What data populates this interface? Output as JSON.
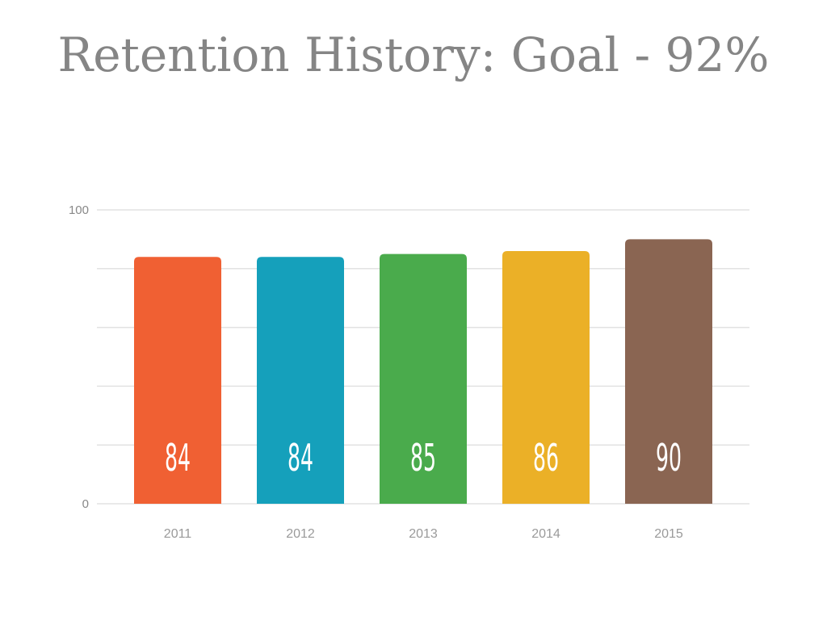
{
  "chart_data": {
    "type": "bar",
    "title": "Retention History: Goal - 92%",
    "categories": [
      "2011",
      "2012",
      "2013",
      "2014",
      "2015"
    ],
    "values": [
      84,
      84,
      85,
      86,
      90
    ],
    "colors": [
      "#f06033",
      "#15a0bb",
      "#4aab4c",
      "#ebb027",
      "#8a6552"
    ],
    "ylim": [
      0,
      100
    ],
    "yticks": [
      0,
      100
    ],
    "grid": true,
    "xlabel": "",
    "ylabel": ""
  }
}
